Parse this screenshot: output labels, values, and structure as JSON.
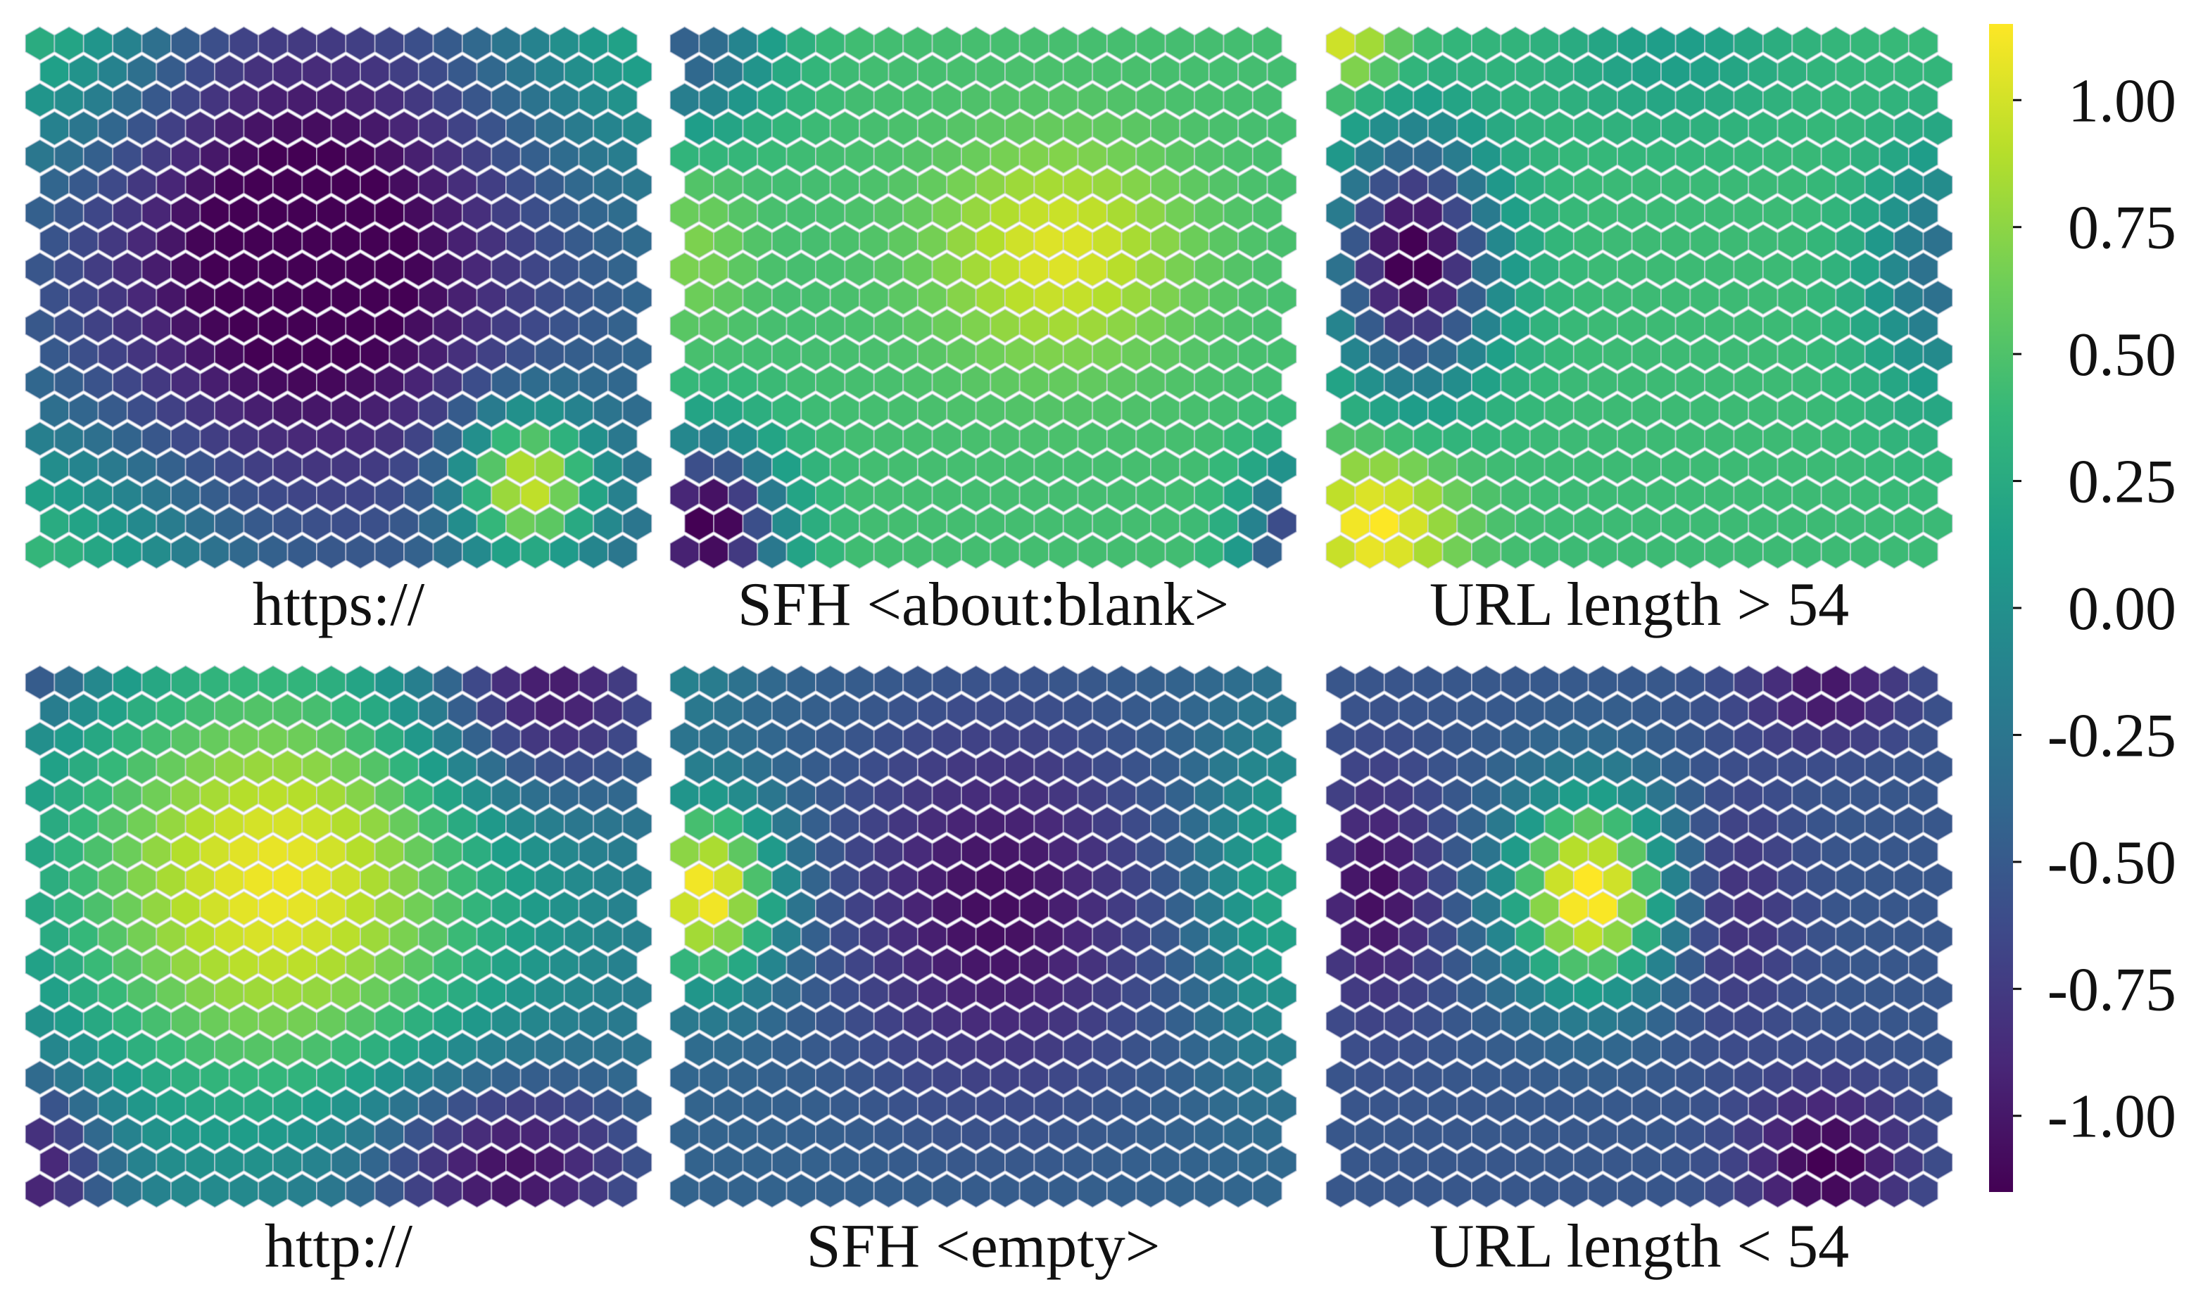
{
  "chart_data": {
    "type": "heatmap",
    "description_kind": "hexagonal self-organizing map component planes",
    "grid": {
      "cols": 21,
      "rows": 19,
      "cell_shape": "hexagon"
    },
    "colormap": "viridis",
    "colormap_stops": [
      "#440154",
      "#482878",
      "#3e4989",
      "#31688e",
      "#26828e",
      "#1f9e89",
      "#35b779",
      "#6ece58",
      "#b5de2b",
      "#fde725"
    ],
    "value_range": [
      -1.15,
      1.15
    ],
    "colorbar": {
      "ticks": [
        "1.00",
        "0.75",
        "0.50",
        "0.25",
        "0.00",
        "-0.25",
        "-0.50",
        "-0.75",
        "-1.00"
      ],
      "tick_values": [
        1.0,
        0.75,
        0.5,
        0.25,
        0.0,
        -0.25,
        -0.5,
        -0.75,
        -1.0
      ]
    },
    "panels": [
      {
        "title": "https://",
        "base": -0.3,
        "blobs": [
          {
            "cx": 0.45,
            "cy": 0.43,
            "sx": 0.26,
            "sy": 0.32,
            "a": -1.05
          },
          {
            "cx": 0.8,
            "cy": 0.84,
            "sx": 0.08,
            "sy": 0.1,
            "a": 1.45
          },
          {
            "cx": 0.0,
            "cy": 1.0,
            "sx": 0.2,
            "sy": 0.18,
            "a": 0.75
          },
          {
            "cx": 1.0,
            "cy": 0.0,
            "sx": 0.2,
            "sy": 0.2,
            "a": 0.55
          },
          {
            "cx": 0.02,
            "cy": 0.0,
            "sx": 0.15,
            "sy": 0.18,
            "a": 0.7
          }
        ]
      },
      {
        "title": "SFH <about:blank>",
        "base": 0.45,
        "blobs": [
          {
            "cx": 0.62,
            "cy": 0.42,
            "sx": 0.14,
            "sy": 0.14,
            "a": 0.6
          },
          {
            "cx": 0.06,
            "cy": 0.92,
            "sx": 0.08,
            "sy": 0.11,
            "a": -1.7
          },
          {
            "cx": 0.02,
            "cy": 0.05,
            "sx": 0.1,
            "sy": 0.1,
            "a": -0.9
          },
          {
            "cx": 1.0,
            "cy": 0.95,
            "sx": 0.06,
            "sy": 0.1,
            "a": -1.2
          },
          {
            "cx": 0.04,
            "cy": 0.42,
            "sx": 0.06,
            "sy": 0.1,
            "a": 0.25
          }
        ]
      },
      {
        "title": "URL length > 54",
        "base": 0.42,
        "blobs": [
          {
            "cx": 0.14,
            "cy": 0.43,
            "sx": 0.09,
            "sy": 0.16,
            "a": -1.65
          },
          {
            "cx": 0.08,
            "cy": 0.92,
            "sx": 0.09,
            "sy": 0.1,
            "a": 0.75
          },
          {
            "cx": 0.98,
            "cy": 0.45,
            "sx": 0.08,
            "sy": 0.16,
            "a": -0.75
          },
          {
            "cx": 0.55,
            "cy": 0.05,
            "sx": 0.14,
            "sy": 0.1,
            "a": -0.3
          },
          {
            "cx": 0.02,
            "cy": 0.02,
            "sx": 0.07,
            "sy": 0.07,
            "a": 0.6
          }
        ]
      },
      {
        "title": "http://",
        "base": -0.25,
        "blobs": [
          {
            "cx": 0.4,
            "cy": 0.4,
            "sx": 0.26,
            "sy": 0.3,
            "a": 1.35
          },
          {
            "cx": 0.82,
            "cy": 0.06,
            "sx": 0.14,
            "sy": 0.14,
            "a": -0.9
          },
          {
            "cx": 0.76,
            "cy": 0.92,
            "sx": 0.16,
            "sy": 0.13,
            "a": -0.9
          },
          {
            "cx": 0.02,
            "cy": 0.92,
            "sx": 0.08,
            "sy": 0.12,
            "a": -0.8
          },
          {
            "cx": 0.02,
            "cy": 0.0,
            "sx": 0.07,
            "sy": 0.07,
            "a": -0.5
          }
        ]
      },
      {
        "title": "SFH <empty>",
        "base": -0.42,
        "blobs": [
          {
            "cx": 0.52,
            "cy": 0.45,
            "sx": 0.17,
            "sy": 0.24,
            "a": -0.65
          },
          {
            "cx": 0.06,
            "cy": 0.42,
            "sx": 0.08,
            "sy": 0.12,
            "a": 1.6
          },
          {
            "cx": 0.96,
            "cy": 0.42,
            "sx": 0.08,
            "sy": 0.22,
            "a": 0.65
          },
          {
            "cx": 0.02,
            "cy": 0.0,
            "sx": 0.08,
            "sy": 0.08,
            "a": 0.3
          }
        ]
      },
      {
        "title": "URL length < 54",
        "base": -0.52,
        "blobs": [
          {
            "cx": 0.42,
            "cy": 0.42,
            "sx": 0.09,
            "sy": 0.13,
            "a": 1.75
          },
          {
            "cx": 0.08,
            "cy": 0.42,
            "sx": 0.07,
            "sy": 0.15,
            "a": -0.55
          },
          {
            "cx": 0.8,
            "cy": 0.92,
            "sx": 0.09,
            "sy": 0.1,
            "a": -0.65
          },
          {
            "cx": 0.8,
            "cy": 0.05,
            "sx": 0.09,
            "sy": 0.07,
            "a": -0.5
          },
          {
            "cx": 0.65,
            "cy": 0.45,
            "sx": 0.07,
            "sy": 0.15,
            "a": -0.35
          }
        ]
      }
    ]
  }
}
